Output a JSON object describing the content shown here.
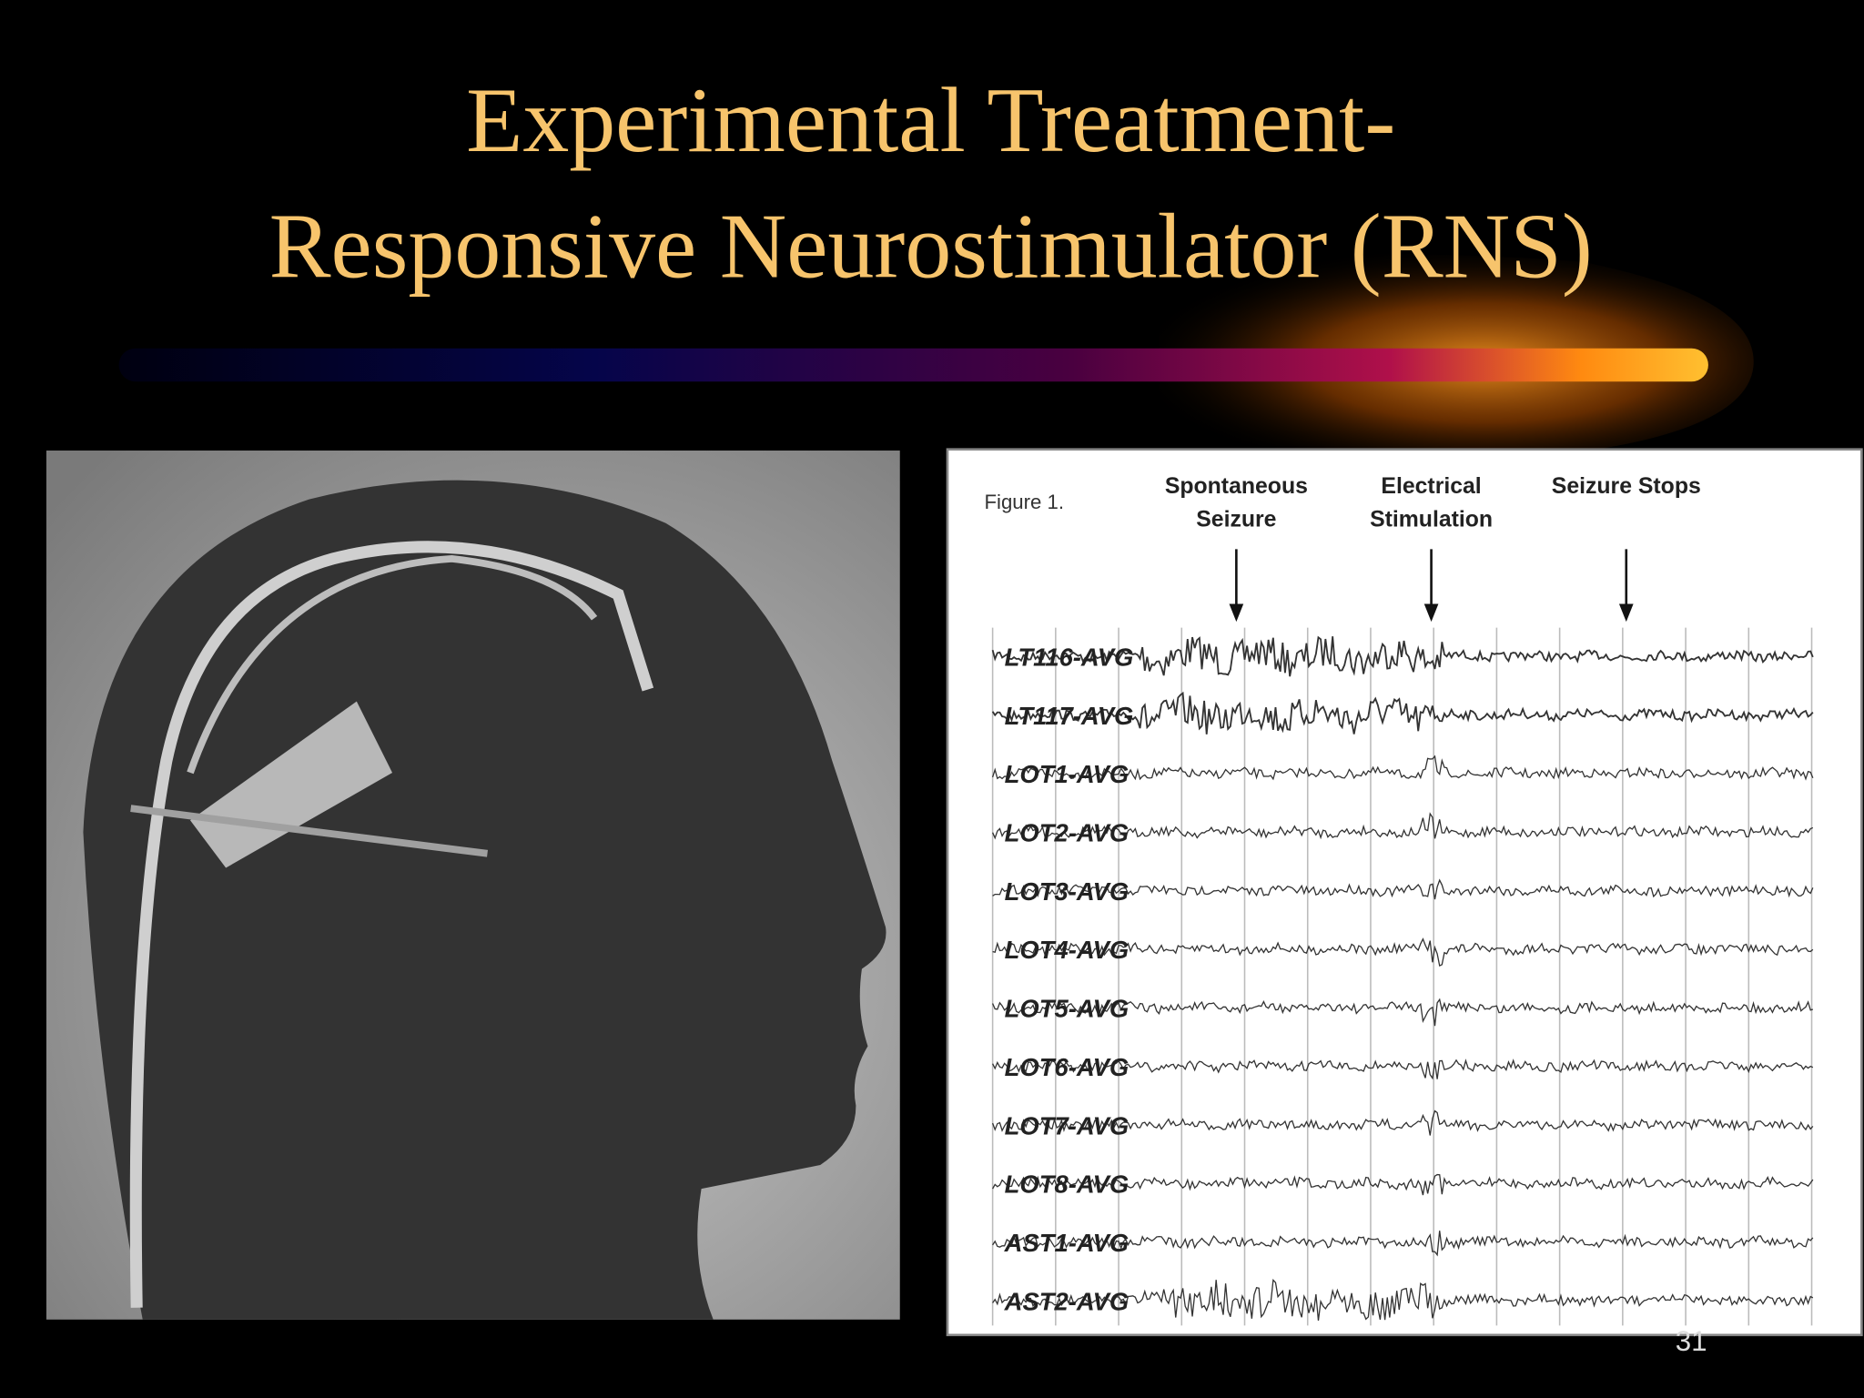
{
  "slide": {
    "title": {
      "lines": [
        "Experimental Treatment-",
        "Responsive Neurostimulator (RNS)"
      ]
    },
    "figure": {
      "caption": "Figure 1.",
      "annotations": [
        {
          "lines": [
            "Spontaneous",
            "Seizure"
          ]
        },
        {
          "lines": [
            "Electrical",
            "Stimulation"
          ]
        },
        {
          "lines": [
            "Seizure Stops"
          ]
        }
      ],
      "channels": [
        "LT116-AVG",
        "LT117-AVG",
        "LOT1-AVG",
        "LOT2-AVG",
        "LOT3-AVG",
        "LOT4-AVG",
        "LOT5-AVG",
        "LOT6-AVG",
        "LOT7-AVG",
        "LOT8-AVG",
        "AST1-AVG",
        "AST2-AVG"
      ]
    },
    "page_number": "31"
  }
}
